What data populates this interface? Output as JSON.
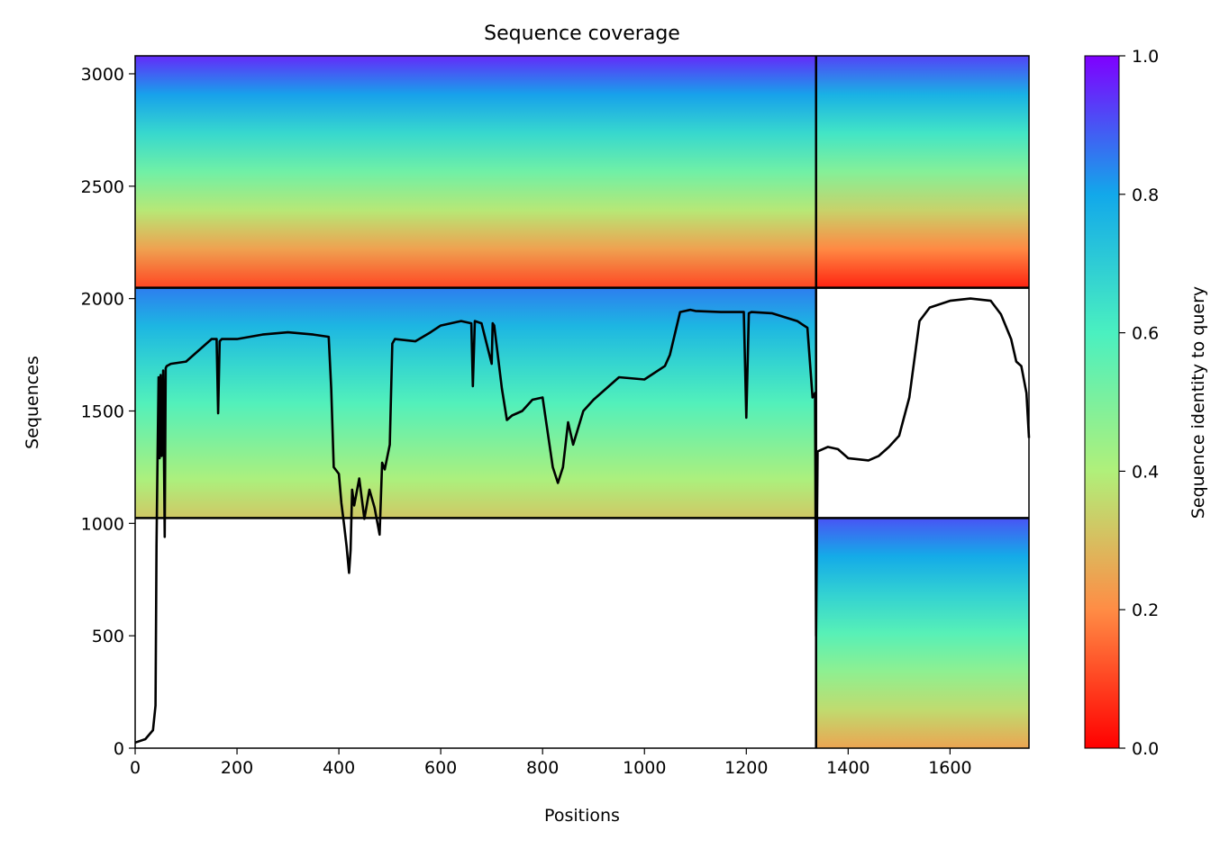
{
  "chart_data": {
    "type": "heatmap",
    "title": "Sequence coverage",
    "xlabel": "Positions",
    "ylabel": "Sequences",
    "xlim": [
      0,
      1755
    ],
    "ylim": [
      0,
      3080
    ],
    "x_ticks": [
      0,
      200,
      400,
      600,
      800,
      1000,
      1200,
      1400,
      1600
    ],
    "y_ticks": [
      0,
      500,
      1000,
      1500,
      2000,
      2500,
      3000
    ],
    "segment_boundaries": {
      "x": [
        1337
      ],
      "y": [
        1024,
        2048
      ]
    },
    "colorbar": {
      "label": "Sequence identity to query",
      "range": [
        0.0,
        1.0
      ],
      "ticks": [
        "0.0",
        "0.2",
        "0.4",
        "0.6",
        "0.8",
        "1.0"
      ],
      "colormap": "rainbow_r"
    },
    "blocks": [
      {
        "x": [
          0,
          1337
        ],
        "y": [
          1024,
          2048
        ],
        "identity_bottom": 0.32,
        "identity_top": 0.85
      },
      {
        "x": [
          0,
          1337
        ],
        "y": [
          2048,
          3080
        ],
        "identity_bottom": 0.1,
        "identity_top": 0.95
      },
      {
        "x": [
          1337,
          1755
        ],
        "y": [
          0,
          1024
        ],
        "identity_bottom": 0.25,
        "identity_top": 0.9
      },
      {
        "x": [
          1337,
          1755
        ],
        "y": [
          2048,
          3080
        ],
        "identity_bottom": 0.05,
        "identity_top": 0.92
      }
    ],
    "coverage_line": {
      "x": [
        0,
        20,
        35,
        40,
        42,
        44,
        46,
        48,
        50,
        52,
        55,
        58,
        60,
        62,
        70,
        100,
        150,
        160,
        163,
        166,
        170,
        200,
        250,
        300,
        350,
        380,
        385,
        390,
        400,
        405,
        410,
        415,
        420,
        423,
        426,
        430,
        440,
        450,
        460,
        470,
        480,
        485,
        490,
        500,
        505,
        510,
        550,
        580,
        600,
        640,
        660,
        663,
        667,
        680,
        700,
        702,
        705,
        720,
        730,
        740,
        760,
        780,
        800,
        820,
        830,
        840,
        850,
        860,
        880,
        900,
        950,
        1000,
        1040,
        1050,
        1070,
        1090,
        1100,
        1150,
        1195,
        1200,
        1205,
        1210,
        1250,
        1300,
        1320,
        1330,
        1335,
        1337,
        1340,
        1360,
        1380,
        1400,
        1440,
        1460,
        1480,
        1500,
        1520,
        1540,
        1560,
        1600,
        1640,
        1680,
        1700,
        1720,
        1730,
        1740,
        1750,
        1755
      ],
      "y": [
        25,
        40,
        80,
        190,
        900,
        1310,
        1650,
        1290,
        1660,
        1300,
        1680,
        940,
        1690,
        1700,
        1710,
        1720,
        1820,
        1820,
        1490,
        1810,
        1820,
        1820,
        1840,
        1850,
        1840,
        1830,
        1600,
        1250,
        1220,
        1090,
        1000,
        900,
        780,
        880,
        1150,
        1080,
        1200,
        1020,
        1150,
        1070,
        950,
        1270,
        1240,
        1350,
        1800,
        1820,
        1810,
        1850,
        1880,
        1900,
        1890,
        1610,
        1900,
        1890,
        1710,
        1890,
        1880,
        1600,
        1460,
        1480,
        1500,
        1550,
        1560,
        1250,
        1180,
        1250,
        1450,
        1350,
        1500,
        1550,
        1650,
        1640,
        1700,
        1750,
        1940,
        1950,
        1945,
        1940,
        1940,
        1470,
        1935,
        1940,
        1935,
        1900,
        1870,
        1560,
        1580,
        500,
        1320,
        1340,
        1330,
        1290,
        1280,
        1300,
        1340,
        1390,
        1560,
        1900,
        1960,
        1990,
        2000,
        1990,
        1930,
        1820,
        1720,
        1700,
        1580,
        1380
      ]
    }
  }
}
